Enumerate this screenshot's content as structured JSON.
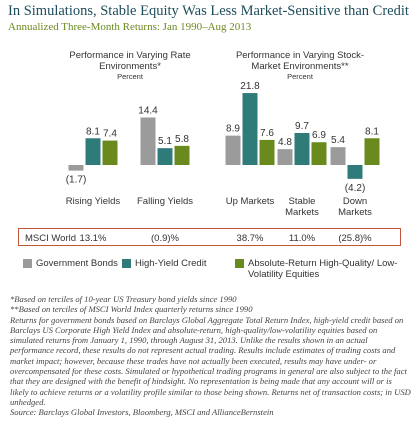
{
  "title": "In Simulations, Stable Equity Was Less Market-Sensitive than Credit",
  "subtitle": "Annualized Three-Month Returns: Jan 1990–Aug 2013",
  "chart_data": [
    {
      "type": "bar",
      "title": "Performance in Varying Rate Environments*",
      "subtitle": "Percent",
      "categories": [
        "Rising Yields",
        "Falling Yields"
      ],
      "series": [
        {
          "name": "Government Bonds",
          "color": "#9b9b9b",
          "values": [
            -1.7,
            14.4
          ],
          "value_labels": [
            "(1.7)",
            "14.4"
          ]
        },
        {
          "name": "High-Yield Credit",
          "color": "#2f7b79",
          "values": [
            8.1,
            5.1
          ]
        },
        {
          "name": "Absolute-Return High-Quality/ Low-Volatility Equities",
          "color": "#6a8a1e",
          "values": [
            7.4,
            5.8
          ]
        }
      ]
    },
    {
      "type": "bar",
      "title": "Performance in Varying Stock-Market Environments**",
      "subtitle": "Percent",
      "categories": [
        "Up Markets",
        "Stable Markets",
        "Down Markets"
      ],
      "series": [
        {
          "name": "Government Bonds",
          "color": "#9b9b9b",
          "values": [
            8.9,
            4.8,
            5.4
          ]
        },
        {
          "name": "High-Yield Credit",
          "color": "#2f7b79",
          "values": [
            21.8,
            9.7,
            -4.2
          ],
          "value_labels": [
            "21.8",
            "9.7",
            "(4.2)"
          ]
        },
        {
          "name": "Absolute-Return High-Quality/ Low-Volatility Equities",
          "color": "#6a8a1e",
          "values": [
            7.6,
            6.9,
            8.1
          ]
        }
      ]
    }
  ],
  "msci": {
    "label": "MSCI World",
    "values": [
      "13.1%",
      "(0.9)%",
      "38.7%",
      "11.0%",
      "(25.8)%"
    ]
  },
  "footnotes": [
    "*Based on terciles of 10-year US Treasury bond yields since 1990",
    "**Based on terciles of MSCI World Index quarterly returns since 1990",
    "Returns for government bonds based on Barclays Global Aggregate Total Return Index, high-yield credit based on Barclays US Corporate High Yield Index and absolute-return, high-quality/low-volatility equities based on simulated returns from January 1, 1990, through August 31, 2013. Unlike the results shown in an actual performance record, these results do not represent actual trading. Results include estimates of trading costs and market impact; however, because these trades have not actually been executed, results may have under- or overcompensated for these costs. Simulated or hypothetical trading programs in general are also subject to the fact that they are designed with the benefit of hindsight. No representation is being made that any account will or is likely to achieve returns or a volatility profile similar to those being shown. Returns net of transaction costs; in USD unhedged.",
    "Source: Barclays Global Investors, Bloomberg, MSCI and AllianceBernstein"
  ]
}
